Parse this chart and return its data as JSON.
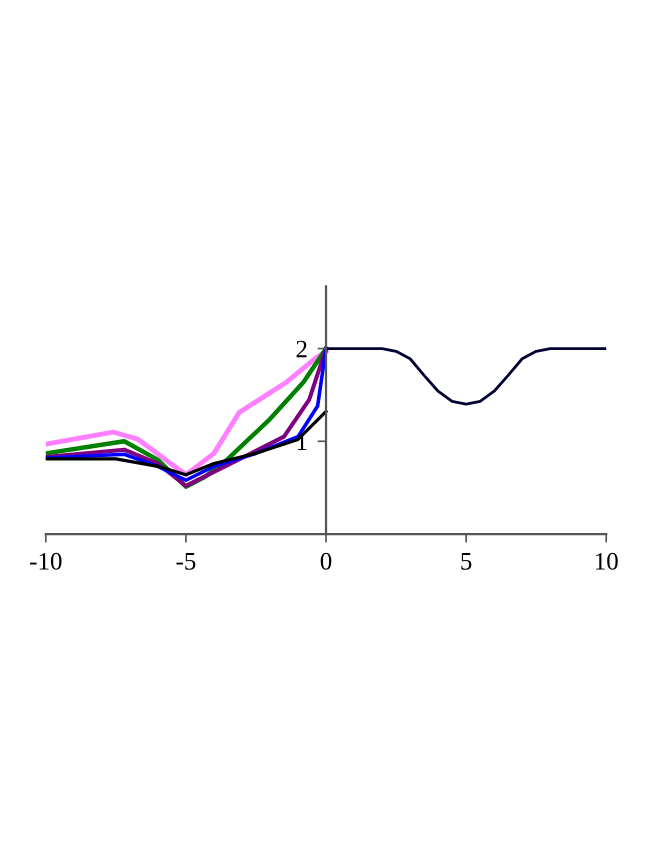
{
  "chart_data": {
    "type": "line",
    "xlim": [
      -10,
      10
    ],
    "ylim": [
      0,
      2.67
    ],
    "xticks": [
      -10,
      -5,
      0,
      5,
      10
    ],
    "yticks": [
      1,
      2
    ],
    "grid": false,
    "legend": false,
    "line_style": "solid",
    "marker": "none",
    "series": [
      {
        "color": "#ff80ff",
        "x": [
          -10,
          -7.6,
          -6.7,
          -5,
          -4,
          -3.1,
          -1.4,
          -0.36,
          0
        ],
        "values": [
          0.97,
          1.1,
          1.02,
          0.64,
          0.87,
          1.31,
          1.64,
          1.9,
          1.97
        ]
      },
      {
        "color": "#008000",
        "x": [
          -10,
          -7.2,
          -6,
          -5,
          -4.3,
          -3.5,
          -2,
          -0.8,
          0
        ],
        "values": [
          0.87,
          1.0,
          0.8,
          0.51,
          0.62,
          0.81,
          1.24,
          1.64,
          2
        ]
      },
      {
        "color": "#800080",
        "x": [
          -10,
          -7.2,
          -6,
          -5,
          -4,
          -3,
          -1.5,
          -0.6,
          0
        ],
        "values": [
          0.83,
          0.91,
          0.76,
          0.52,
          0.67,
          0.82,
          1.05,
          1.45,
          2
        ]
      },
      {
        "color": "#0000ff",
        "x": [
          -10,
          -7.2,
          -6,
          -5,
          -4,
          -2.5,
          -1,
          -0.3,
          0
        ],
        "values": [
          0.82,
          0.86,
          0.73,
          0.58,
          0.73,
          0.87,
          1.05,
          1.38,
          2
        ]
      },
      {
        "color": "#000000",
        "x": [
          -10,
          -7.5,
          -6,
          -5,
          -4,
          -2.5,
          -1,
          0
        ],
        "values": [
          0.81,
          0.81,
          0.73,
          0.64,
          0.76,
          0.87,
          1.02,
          1.32
        ]
      },
      {
        "color": "#000033",
        "x": [
          0,
          2,
          2.5,
          3,
          3.5,
          4,
          4.5,
          5,
          5.5,
          6,
          6.5,
          7,
          7.5,
          8,
          10
        ],
        "values": [
          2,
          2,
          1.97,
          1.89,
          1.71,
          1.54,
          1.43,
          1.4,
          1.43,
          1.54,
          1.71,
          1.89,
          1.97,
          2,
          2
        ]
      }
    ]
  }
}
